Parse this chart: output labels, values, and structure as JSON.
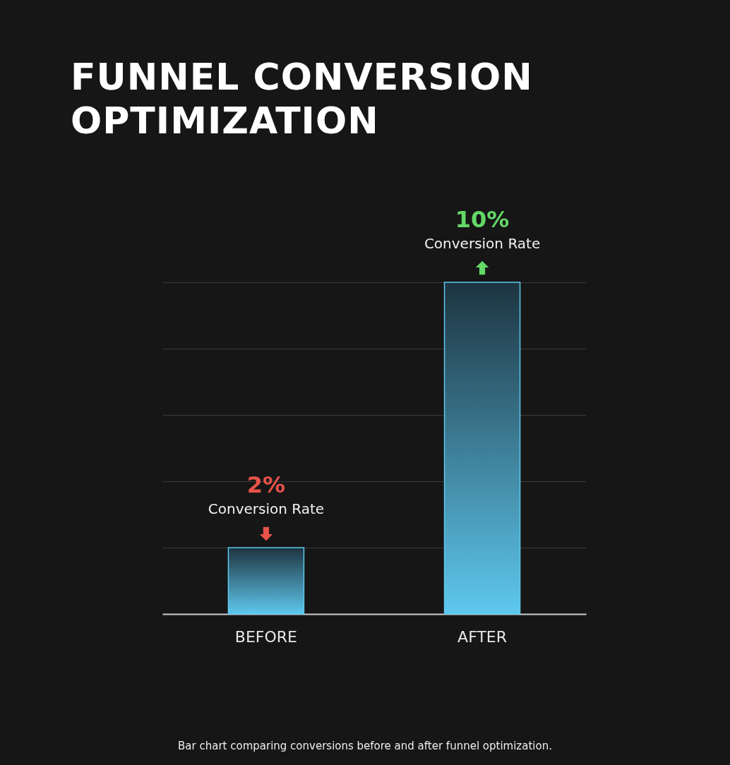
{
  "chart_data": {
    "type": "bar",
    "title": "FUNNEL CONVERSION OPTIMIZATION",
    "categories": [
      "BEFORE",
      "AFTER"
    ],
    "values": [
      2,
      10
    ],
    "value_labels": [
      "2%",
      "10%"
    ],
    "color": "#5ec8ee",
    "grid": "y",
    "tick_labels": "x",
    "annotations": [
      "Conversion Rate",
      "Conversion Rate",
      "Bar chart comparing conversions before and after funnel optimization."
    ]
  }
}
